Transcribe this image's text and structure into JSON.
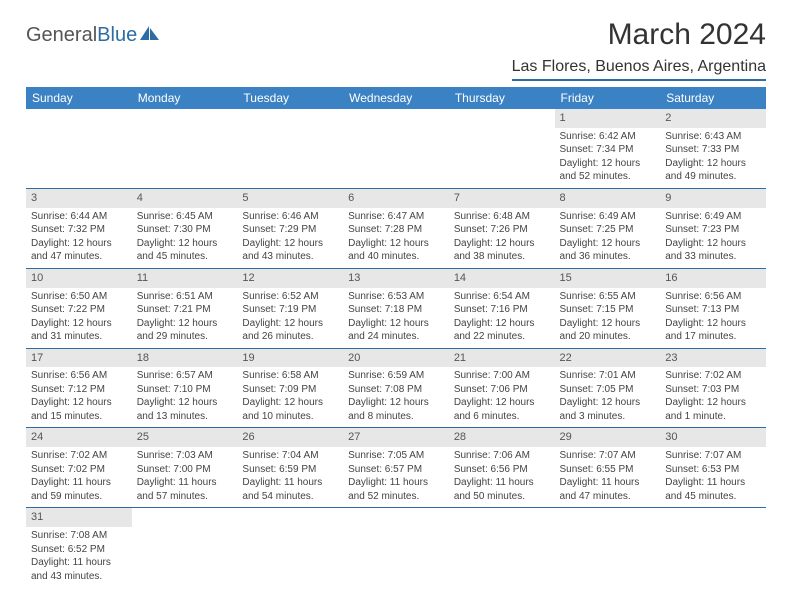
{
  "logo": {
    "part1": "General",
    "part2": "Blue"
  },
  "title": "March 2024",
  "location": "Las Flores, Buenos Aires, Argentina",
  "colors": {
    "header_bg": "#3b82c4",
    "accent": "#2e6ca4",
    "daynum_bg": "#e7e7e7",
    "text": "#333333"
  },
  "weekdays": [
    "Sunday",
    "Monday",
    "Tuesday",
    "Wednesday",
    "Thursday",
    "Friday",
    "Saturday"
  ],
  "weeks": [
    [
      null,
      null,
      null,
      null,
      null,
      {
        "n": "1",
        "sunrise": "6:42 AM",
        "sunset": "7:34 PM",
        "dh": "12",
        "dm": "52"
      },
      {
        "n": "2",
        "sunrise": "6:43 AM",
        "sunset": "7:33 PM",
        "dh": "12",
        "dm": "49"
      }
    ],
    [
      {
        "n": "3",
        "sunrise": "6:44 AM",
        "sunset": "7:32 PM",
        "dh": "12",
        "dm": "47"
      },
      {
        "n": "4",
        "sunrise": "6:45 AM",
        "sunset": "7:30 PM",
        "dh": "12",
        "dm": "45"
      },
      {
        "n": "5",
        "sunrise": "6:46 AM",
        "sunset": "7:29 PM",
        "dh": "12",
        "dm": "43"
      },
      {
        "n": "6",
        "sunrise": "6:47 AM",
        "sunset": "7:28 PM",
        "dh": "12",
        "dm": "40"
      },
      {
        "n": "7",
        "sunrise": "6:48 AM",
        "sunset": "7:26 PM",
        "dh": "12",
        "dm": "38"
      },
      {
        "n": "8",
        "sunrise": "6:49 AM",
        "sunset": "7:25 PM",
        "dh": "12",
        "dm": "36"
      },
      {
        "n": "9",
        "sunrise": "6:49 AM",
        "sunset": "7:23 PM",
        "dh": "12",
        "dm": "33"
      }
    ],
    [
      {
        "n": "10",
        "sunrise": "6:50 AM",
        "sunset": "7:22 PM",
        "dh": "12",
        "dm": "31"
      },
      {
        "n": "11",
        "sunrise": "6:51 AM",
        "sunset": "7:21 PM",
        "dh": "12",
        "dm": "29"
      },
      {
        "n": "12",
        "sunrise": "6:52 AM",
        "sunset": "7:19 PM",
        "dh": "12",
        "dm": "26"
      },
      {
        "n": "13",
        "sunrise": "6:53 AM",
        "sunset": "7:18 PM",
        "dh": "12",
        "dm": "24"
      },
      {
        "n": "14",
        "sunrise": "6:54 AM",
        "sunset": "7:16 PM",
        "dh": "12",
        "dm": "22"
      },
      {
        "n": "15",
        "sunrise": "6:55 AM",
        "sunset": "7:15 PM",
        "dh": "12",
        "dm": "20"
      },
      {
        "n": "16",
        "sunrise": "6:56 AM",
        "sunset": "7:13 PM",
        "dh": "12",
        "dm": "17"
      }
    ],
    [
      {
        "n": "17",
        "sunrise": "6:56 AM",
        "sunset": "7:12 PM",
        "dh": "12",
        "dm": "15"
      },
      {
        "n": "18",
        "sunrise": "6:57 AM",
        "sunset": "7:10 PM",
        "dh": "12",
        "dm": "13"
      },
      {
        "n": "19",
        "sunrise": "6:58 AM",
        "sunset": "7:09 PM",
        "dh": "12",
        "dm": "10"
      },
      {
        "n": "20",
        "sunrise": "6:59 AM",
        "sunset": "7:08 PM",
        "dh": "12",
        "dm": "8"
      },
      {
        "n": "21",
        "sunrise": "7:00 AM",
        "sunset": "7:06 PM",
        "dh": "12",
        "dm": "6"
      },
      {
        "n": "22",
        "sunrise": "7:01 AM",
        "sunset": "7:05 PM",
        "dh": "12",
        "dm": "3"
      },
      {
        "n": "23",
        "sunrise": "7:02 AM",
        "sunset": "7:03 PM",
        "dh": "12",
        "dm": "1"
      }
    ],
    [
      {
        "n": "24",
        "sunrise": "7:02 AM",
        "sunset": "7:02 PM",
        "dh": "11",
        "dm": "59"
      },
      {
        "n": "25",
        "sunrise": "7:03 AM",
        "sunset": "7:00 PM",
        "dh": "11",
        "dm": "57"
      },
      {
        "n": "26",
        "sunrise": "7:04 AM",
        "sunset": "6:59 PM",
        "dh": "11",
        "dm": "54"
      },
      {
        "n": "27",
        "sunrise": "7:05 AM",
        "sunset": "6:57 PM",
        "dh": "11",
        "dm": "52"
      },
      {
        "n": "28",
        "sunrise": "7:06 AM",
        "sunset": "6:56 PM",
        "dh": "11",
        "dm": "50"
      },
      {
        "n": "29",
        "sunrise": "7:07 AM",
        "sunset": "6:55 PM",
        "dh": "11",
        "dm": "47"
      },
      {
        "n": "30",
        "sunrise": "7:07 AM",
        "sunset": "6:53 PM",
        "dh": "11",
        "dm": "45"
      }
    ],
    [
      {
        "n": "31",
        "sunrise": "7:08 AM",
        "sunset": "6:52 PM",
        "dh": "11",
        "dm": "43"
      },
      null,
      null,
      null,
      null,
      null,
      null
    ]
  ],
  "labels": {
    "sunrise": "Sunrise:",
    "sunset": "Sunset:",
    "daylight": "Daylight:",
    "hours": "hours",
    "and": "and",
    "minutes": "minutes.",
    "minute": "minute."
  }
}
